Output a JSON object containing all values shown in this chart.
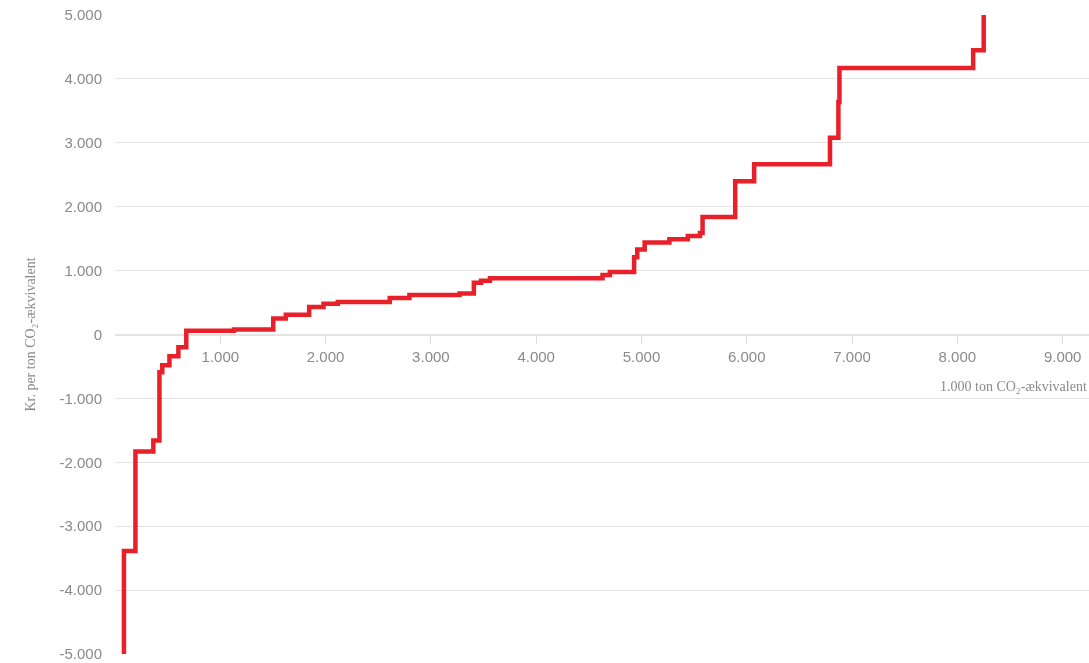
{
  "chart_data": {
    "type": "step",
    "xlabel": "1.000 ton CO₂-ækvivalent",
    "ylabel": "Kr. per ton CO₂-ækvivalent",
    "x": [
      85,
      85,
      194,
      364,
      422,
      449,
      517,
      602,
      677,
      1130,
      1503,
      1622,
      1844,
      1980,
      2116,
      2609,
      2796,
      3272,
      3408,
      3476,
      3561,
      4630,
      4700,
      4930,
      4960,
      5030,
      5265,
      5440,
      5555,
      5580,
      5890,
      6070,
      6790,
      6870,
      6880,
      8150,
      8250
    ],
    "values": [
      -5000,
      -3390,
      -1830,
      -1660,
      -590,
      -480,
      -340,
      -200,
      60,
      80,
      250,
      310,
      430,
      480,
      510,
      570,
      620,
      640,
      810,
      840,
      880,
      930,
      980,
      1210,
      1330,
      1440,
      1490,
      1540,
      1590,
      1840,
      2400,
      2665,
      3080,
      3640,
      4170,
      4450,
      5000
    ],
    "color": "#e8202a",
    "xlim": [
      0,
      9250
    ],
    "ylim": [
      -5000,
      5000
    ],
    "xticks": [
      {
        "value": 1000,
        "label": "1.000"
      },
      {
        "value": 2000,
        "label": "2.000"
      },
      {
        "value": 3000,
        "label": "3.000"
      },
      {
        "value": 4000,
        "label": "4.000"
      },
      {
        "value": 5000,
        "label": "5.000"
      },
      {
        "value": 6000,
        "label": "6.000"
      },
      {
        "value": 7000,
        "label": "7.000"
      },
      {
        "value": 8000,
        "label": "8.000"
      },
      {
        "value": 9000,
        "label": "9.000"
      }
    ],
    "yticks": [
      {
        "value": -5000,
        "label": "-5.000"
      },
      {
        "value": -4000,
        "label": "-4.000"
      },
      {
        "value": -3000,
        "label": "-3.000"
      },
      {
        "value": -2000,
        "label": "-2.000"
      },
      {
        "value": -1000,
        "label": "-1.000"
      },
      0,
      {
        "value": 1000,
        "label": "1.000"
      },
      {
        "value": 2000,
        "label": "2.000"
      },
      {
        "value": 3000,
        "label": "3.000"
      },
      {
        "value": 4000,
        "label": "4.000"
      },
      {
        "value": 5000,
        "label": "5.000"
      }
    ],
    "grid": "y"
  }
}
